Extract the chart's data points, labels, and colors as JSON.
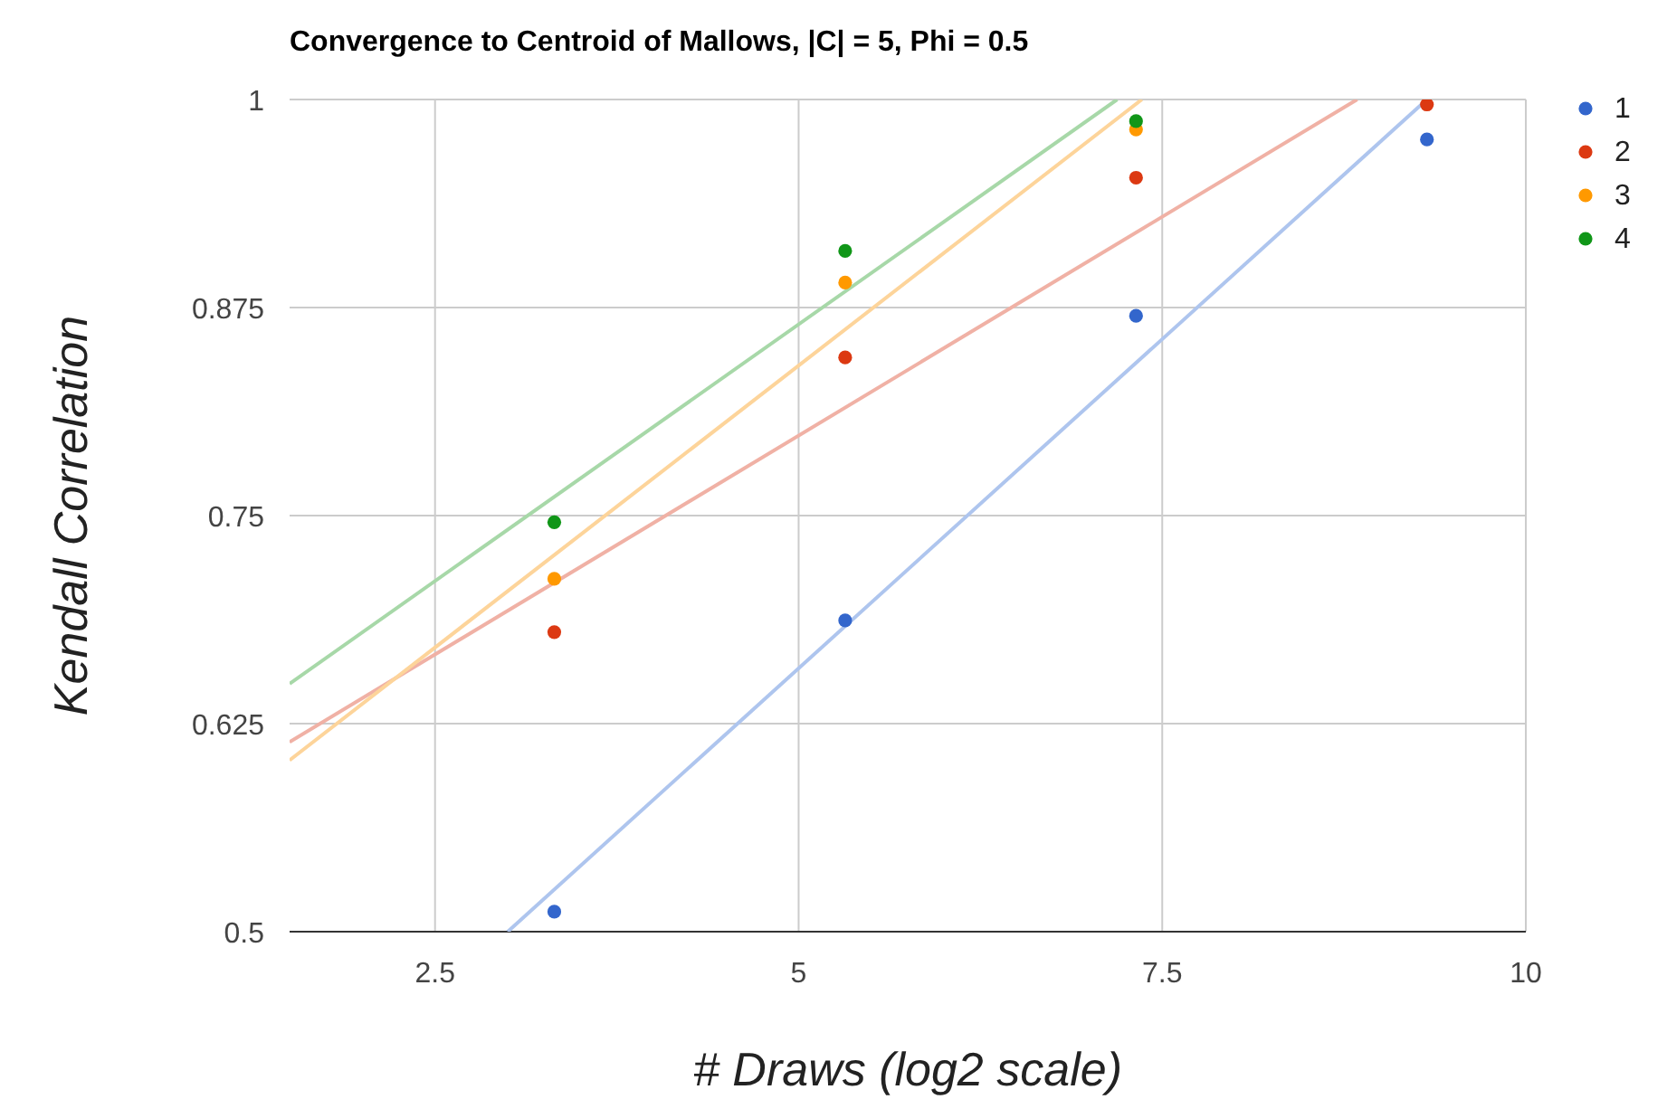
{
  "chart_data": {
    "type": "scatter",
    "title": "Convergence to Centroid of Mallows, |C| = 5, Phi = 0.5",
    "xlabel": "# Draws (log2 scale)",
    "ylabel": "Kendall Correlation",
    "xlim": [
      1.5,
      10
    ],
    "xticks": [
      2.5,
      5,
      7.5,
      10
    ],
    "ylim": [
      0.5,
      1
    ],
    "yticks": [
      0.5,
      0.625,
      0.75,
      0.875,
      1
    ],
    "grid": true,
    "legend": "top right",
    "marker": "circle",
    "series": [
      {
        "type": "line",
        "marker": "none",
        "color": "#aec5ee",
        "x": [
          3.0,
          9.32
        ],
        "values": [
          0.5,
          1.0
        ]
      },
      {
        "type": "line",
        "marker": "none",
        "color": "#f0b1a5",
        "x": [
          1.5,
          8.84
        ],
        "values": [
          0.614,
          1.0
        ]
      },
      {
        "type": "line",
        "marker": "none",
        "color": "#fdd49a",
        "x": [
          1.5,
          7.36
        ],
        "values": [
          0.603,
          1.0
        ]
      },
      {
        "type": "line",
        "marker": "none",
        "color": "#a7d8a8",
        "x": [
          1.5,
          7.19
        ],
        "values": [
          0.649,
          1.0
        ]
      },
      {
        "name": "1",
        "color": "#3366cc",
        "x": [
          3.32,
          5.32,
          7.32,
          9.32
        ],
        "values": [
          0.512,
          0.687,
          0.87,
          0.976
        ]
      },
      {
        "name": "2",
        "color": "#dc3912",
        "x": [
          3.32,
          5.32,
          7.32,
          9.32
        ],
        "values": [
          0.68,
          0.845,
          0.953,
          0.997
        ]
      },
      {
        "name": "3",
        "color": "#ff9900",
        "x": [
          3.32,
          5.32,
          7.32
        ],
        "values": [
          0.712,
          0.89,
          0.982
        ]
      },
      {
        "name": "4",
        "color": "#109618",
        "x": [
          3.32,
          5.32,
          7.32
        ],
        "values": [
          0.746,
          0.909,
          0.987
        ]
      }
    ]
  }
}
